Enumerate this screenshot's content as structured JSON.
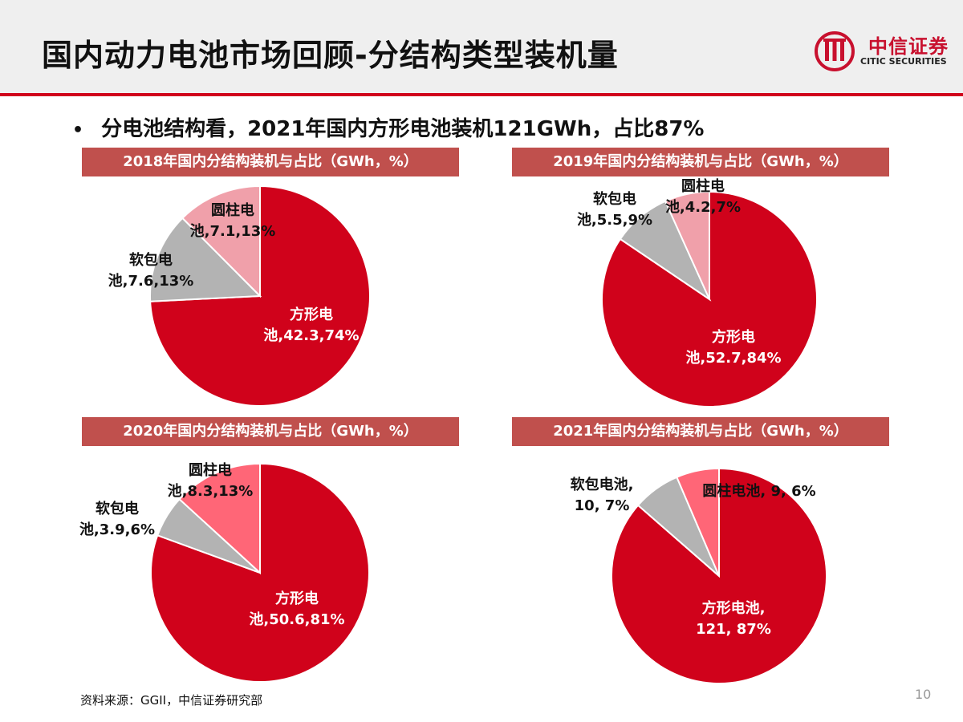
{
  "header": {
    "title": "国内动力电池市场回顾-分结构类型装机量"
  },
  "logo": {
    "name_cn": "中信证券",
    "name_en": "CITIC SECURITIES",
    "brand_color": "#c8102e",
    "icon": "citic-logo-icon"
  },
  "bullet": {
    "dot": "•",
    "text": "分电池结构看，2021年国内方形电池装机121GWh，占比87%"
  },
  "colors": {
    "square": "#d0021b",
    "pouch": "#b3b3b3",
    "cylinder_2018": "#f0a0aa",
    "cylinder_2019": "#f0a0aa",
    "cylinder_2020": "#ff6677",
    "cylinder_2021": "#ff6677",
    "panel_title_bg": "#c0504d"
  },
  "chart_data": [
    {
      "type": "pie",
      "title": "2018年国内分结构装机与占比（GWh，%）",
      "slices": [
        {
          "name": "方形电池",
          "value": 42.3,
          "percent": 74,
          "label_lines": [
            "方形电",
            "池,42.3,74%"
          ]
        },
        {
          "name": "软包电池",
          "value": 7.6,
          "percent": 13,
          "label_lines": [
            "软包电",
            "池,7.6,13%"
          ]
        },
        {
          "name": "圆柱电池",
          "value": 7.1,
          "percent": 13,
          "label_lines": [
            "圆柱电",
            "池,7.1,13%"
          ]
        }
      ]
    },
    {
      "type": "pie",
      "title": "2019年国内分结构装机与占比（GWh，%）",
      "slices": [
        {
          "name": "方形电池",
          "value": 52.7,
          "percent": 84,
          "label_lines": [
            "方形电",
            "池,52.7,84%"
          ]
        },
        {
          "name": "软包电池",
          "value": 5.5,
          "percent": 9,
          "label_lines": [
            "软包电",
            "池,5.5,9%"
          ]
        },
        {
          "name": "圆柱电池",
          "value": 4.2,
          "percent": 7,
          "label_lines": [
            "圆柱电",
            "池,4.2,7%"
          ]
        }
      ]
    },
    {
      "type": "pie",
      "title": "2020年国内分结构装机与占比（GWh，%）",
      "slices": [
        {
          "name": "方形电池",
          "value": 50.6,
          "percent": 81,
          "label_lines": [
            "方形电",
            "池,50.6,81%"
          ]
        },
        {
          "name": "软包电池",
          "value": 3.9,
          "percent": 6,
          "label_lines": [
            "软包电",
            "池,3.9,6%"
          ]
        },
        {
          "name": "圆柱电池",
          "value": 8.3,
          "percent": 13,
          "label_lines": [
            "圆柱电",
            "池,8.3,13%"
          ]
        }
      ]
    },
    {
      "type": "pie",
      "title": "2021年国内分结构装机与占比（GWh，%）",
      "slices": [
        {
          "name": "方形电池",
          "value": 121,
          "percent": 87,
          "label_lines": [
            "方形电池,",
            "121, 87%"
          ]
        },
        {
          "name": "软包电池",
          "value": 10,
          "percent": 7,
          "label_lines": [
            "软包电池,",
            "10, 7%"
          ]
        },
        {
          "name": "圆柱电池",
          "value": 9,
          "percent": 6,
          "label_lines": [
            "圆柱电池, 9, 6%"
          ]
        }
      ]
    }
  ],
  "footer": {
    "source": "资料来源：GGII，中信证券研究部",
    "page_number": "10"
  }
}
